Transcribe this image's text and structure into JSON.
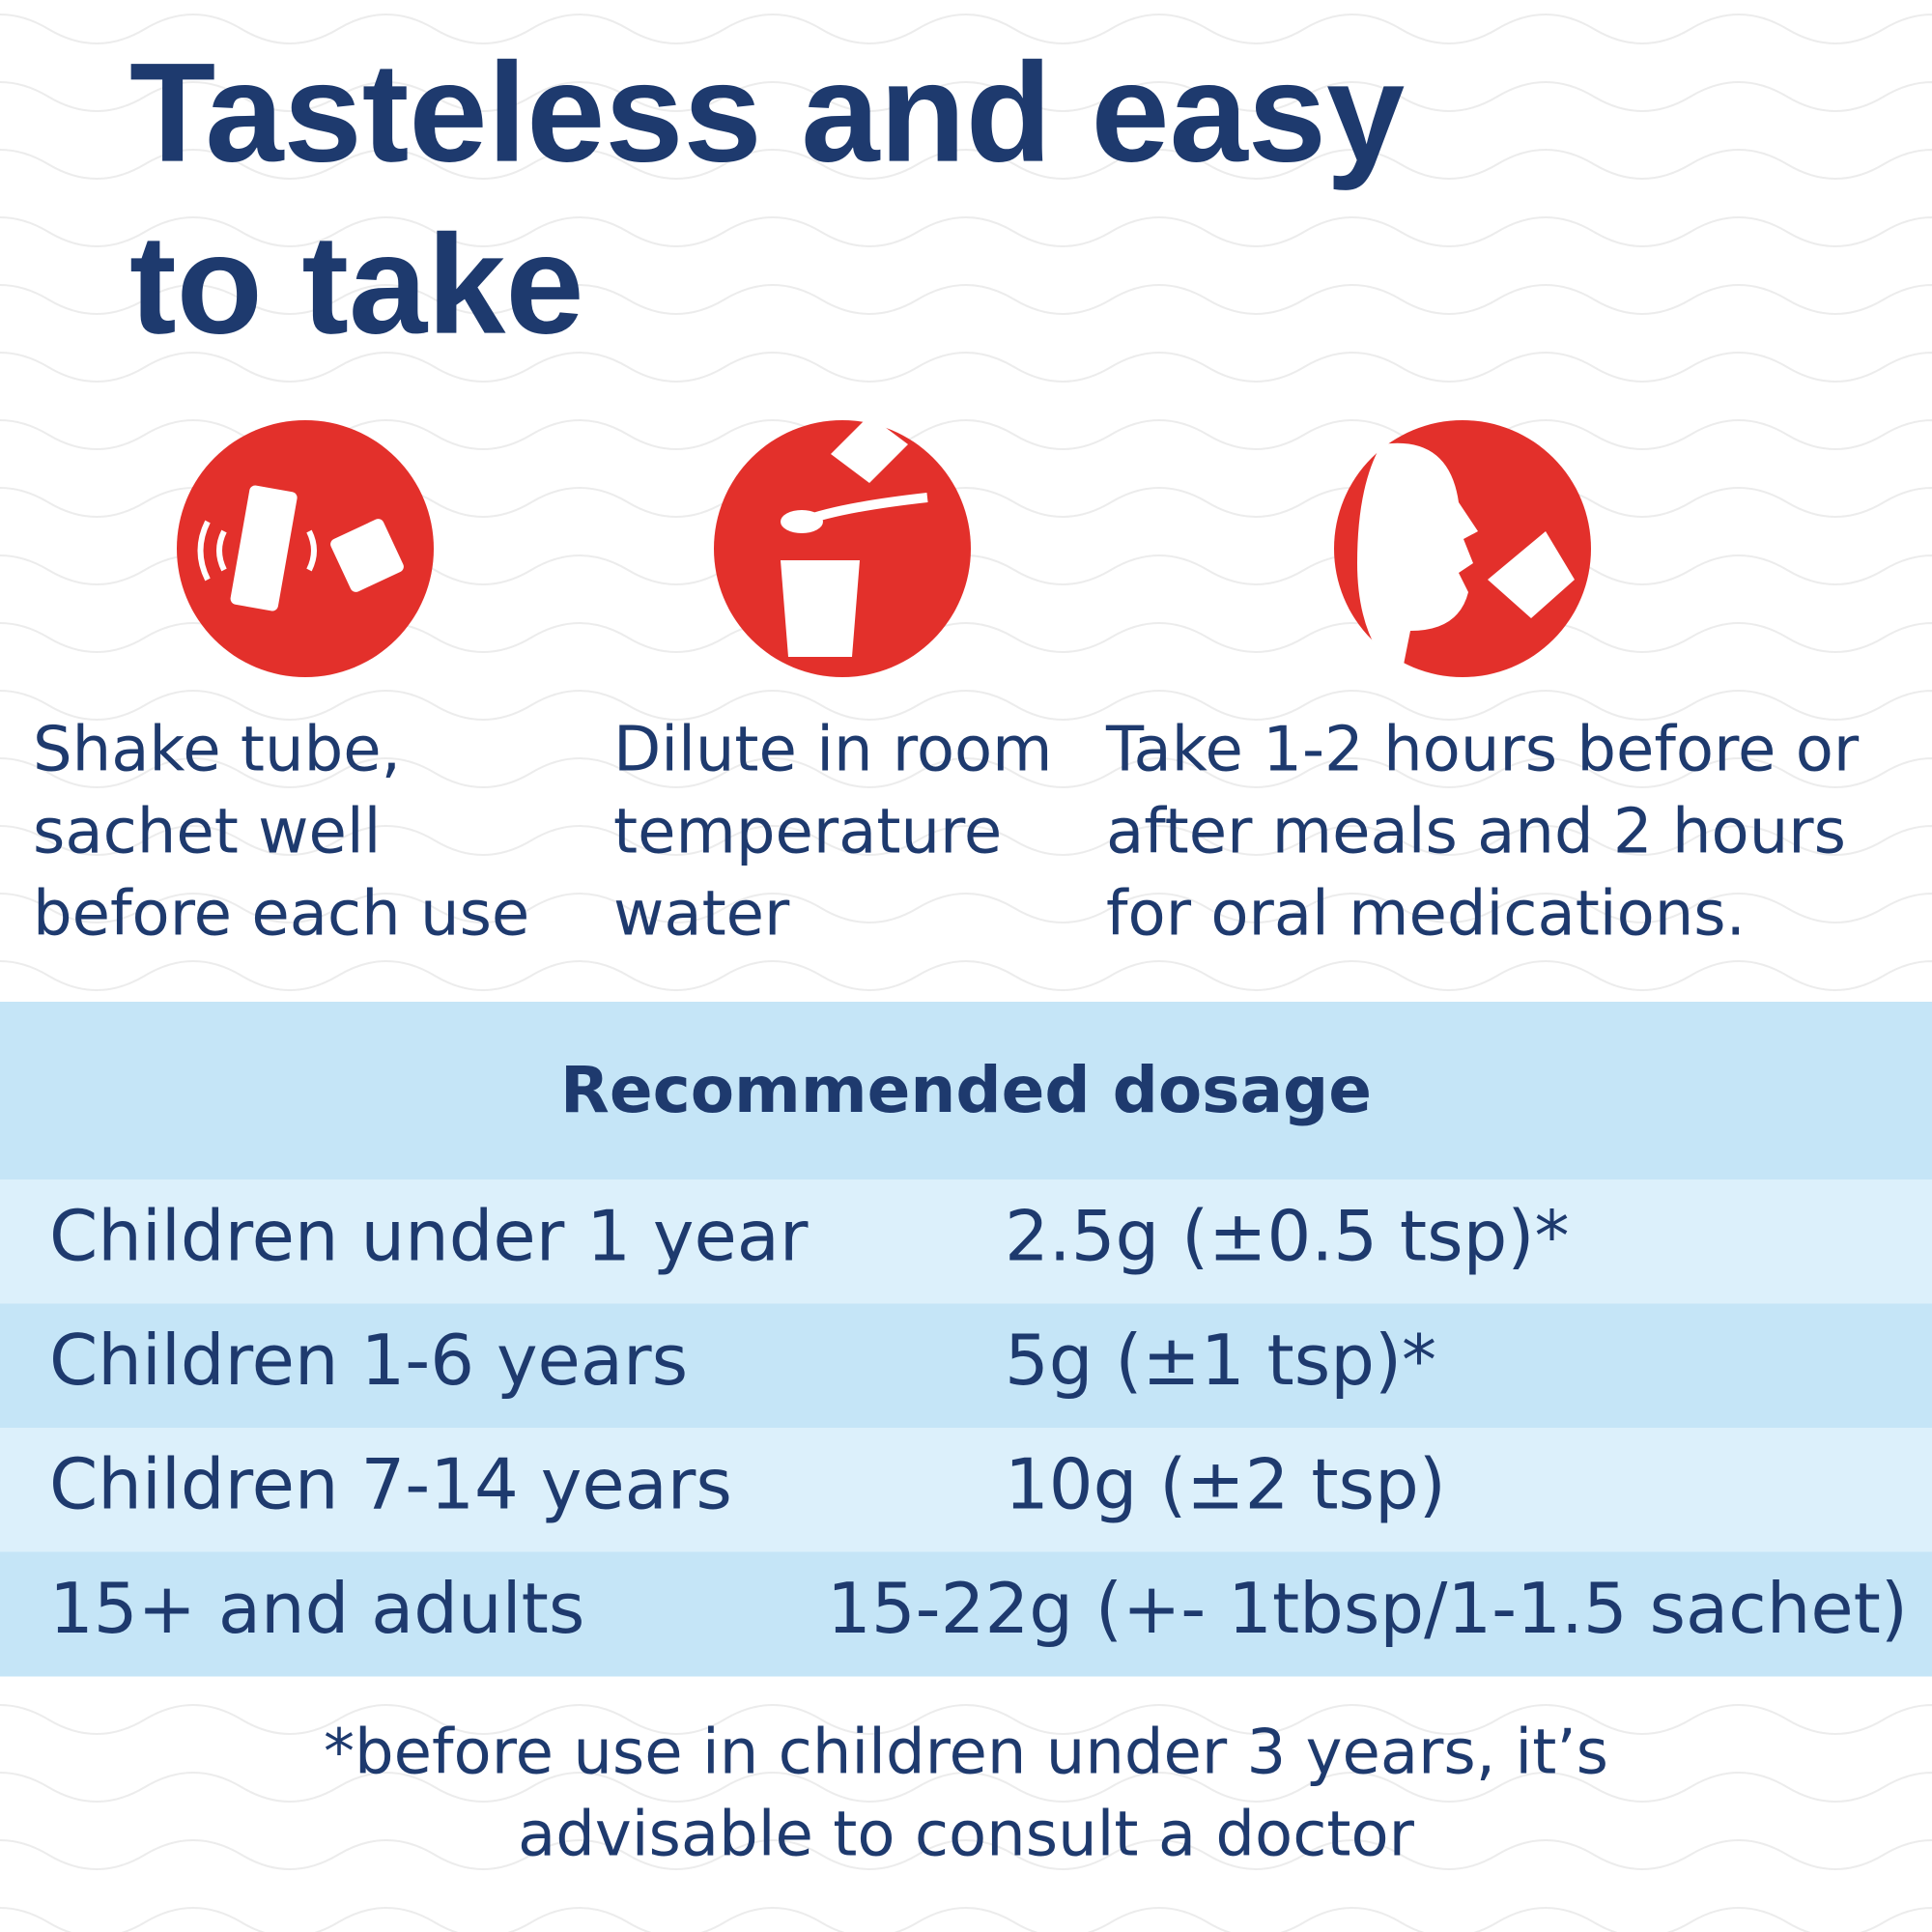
{
  "header": {
    "title_lines": [
      "Tasteless and easy",
      "to take"
    ]
  },
  "steps": [
    {
      "lines": [
        "Shake tube,",
        "sachet well",
        "before each use"
      ]
    },
    {
      "lines": [
        "Dilute in room",
        "temperature",
        "water"
      ]
    },
    {
      "lines": [
        "Take 1-2 hours before or",
        "after meals and 2 hours",
        "for oral medications."
      ]
    }
  ],
  "dosage": {
    "title": "Recommended dosage",
    "rows": [
      [
        "Children under 1 year",
        "2.5g (±0.5 tsp)*"
      ],
      [
        "Children 1-6 years",
        "5g (±1 tsp)*"
      ],
      [
        "Children 7-14 years",
        "10g (±2 tsp)"
      ],
      [
        "15+ and adults",
        "15-22g (+- 1tbsp/1-1.5 sachet)"
      ]
    ]
  },
  "footnote_lines": [
    "*before use in children under 3 years, it’s",
    "advisable to consult a doctor"
  ]
}
